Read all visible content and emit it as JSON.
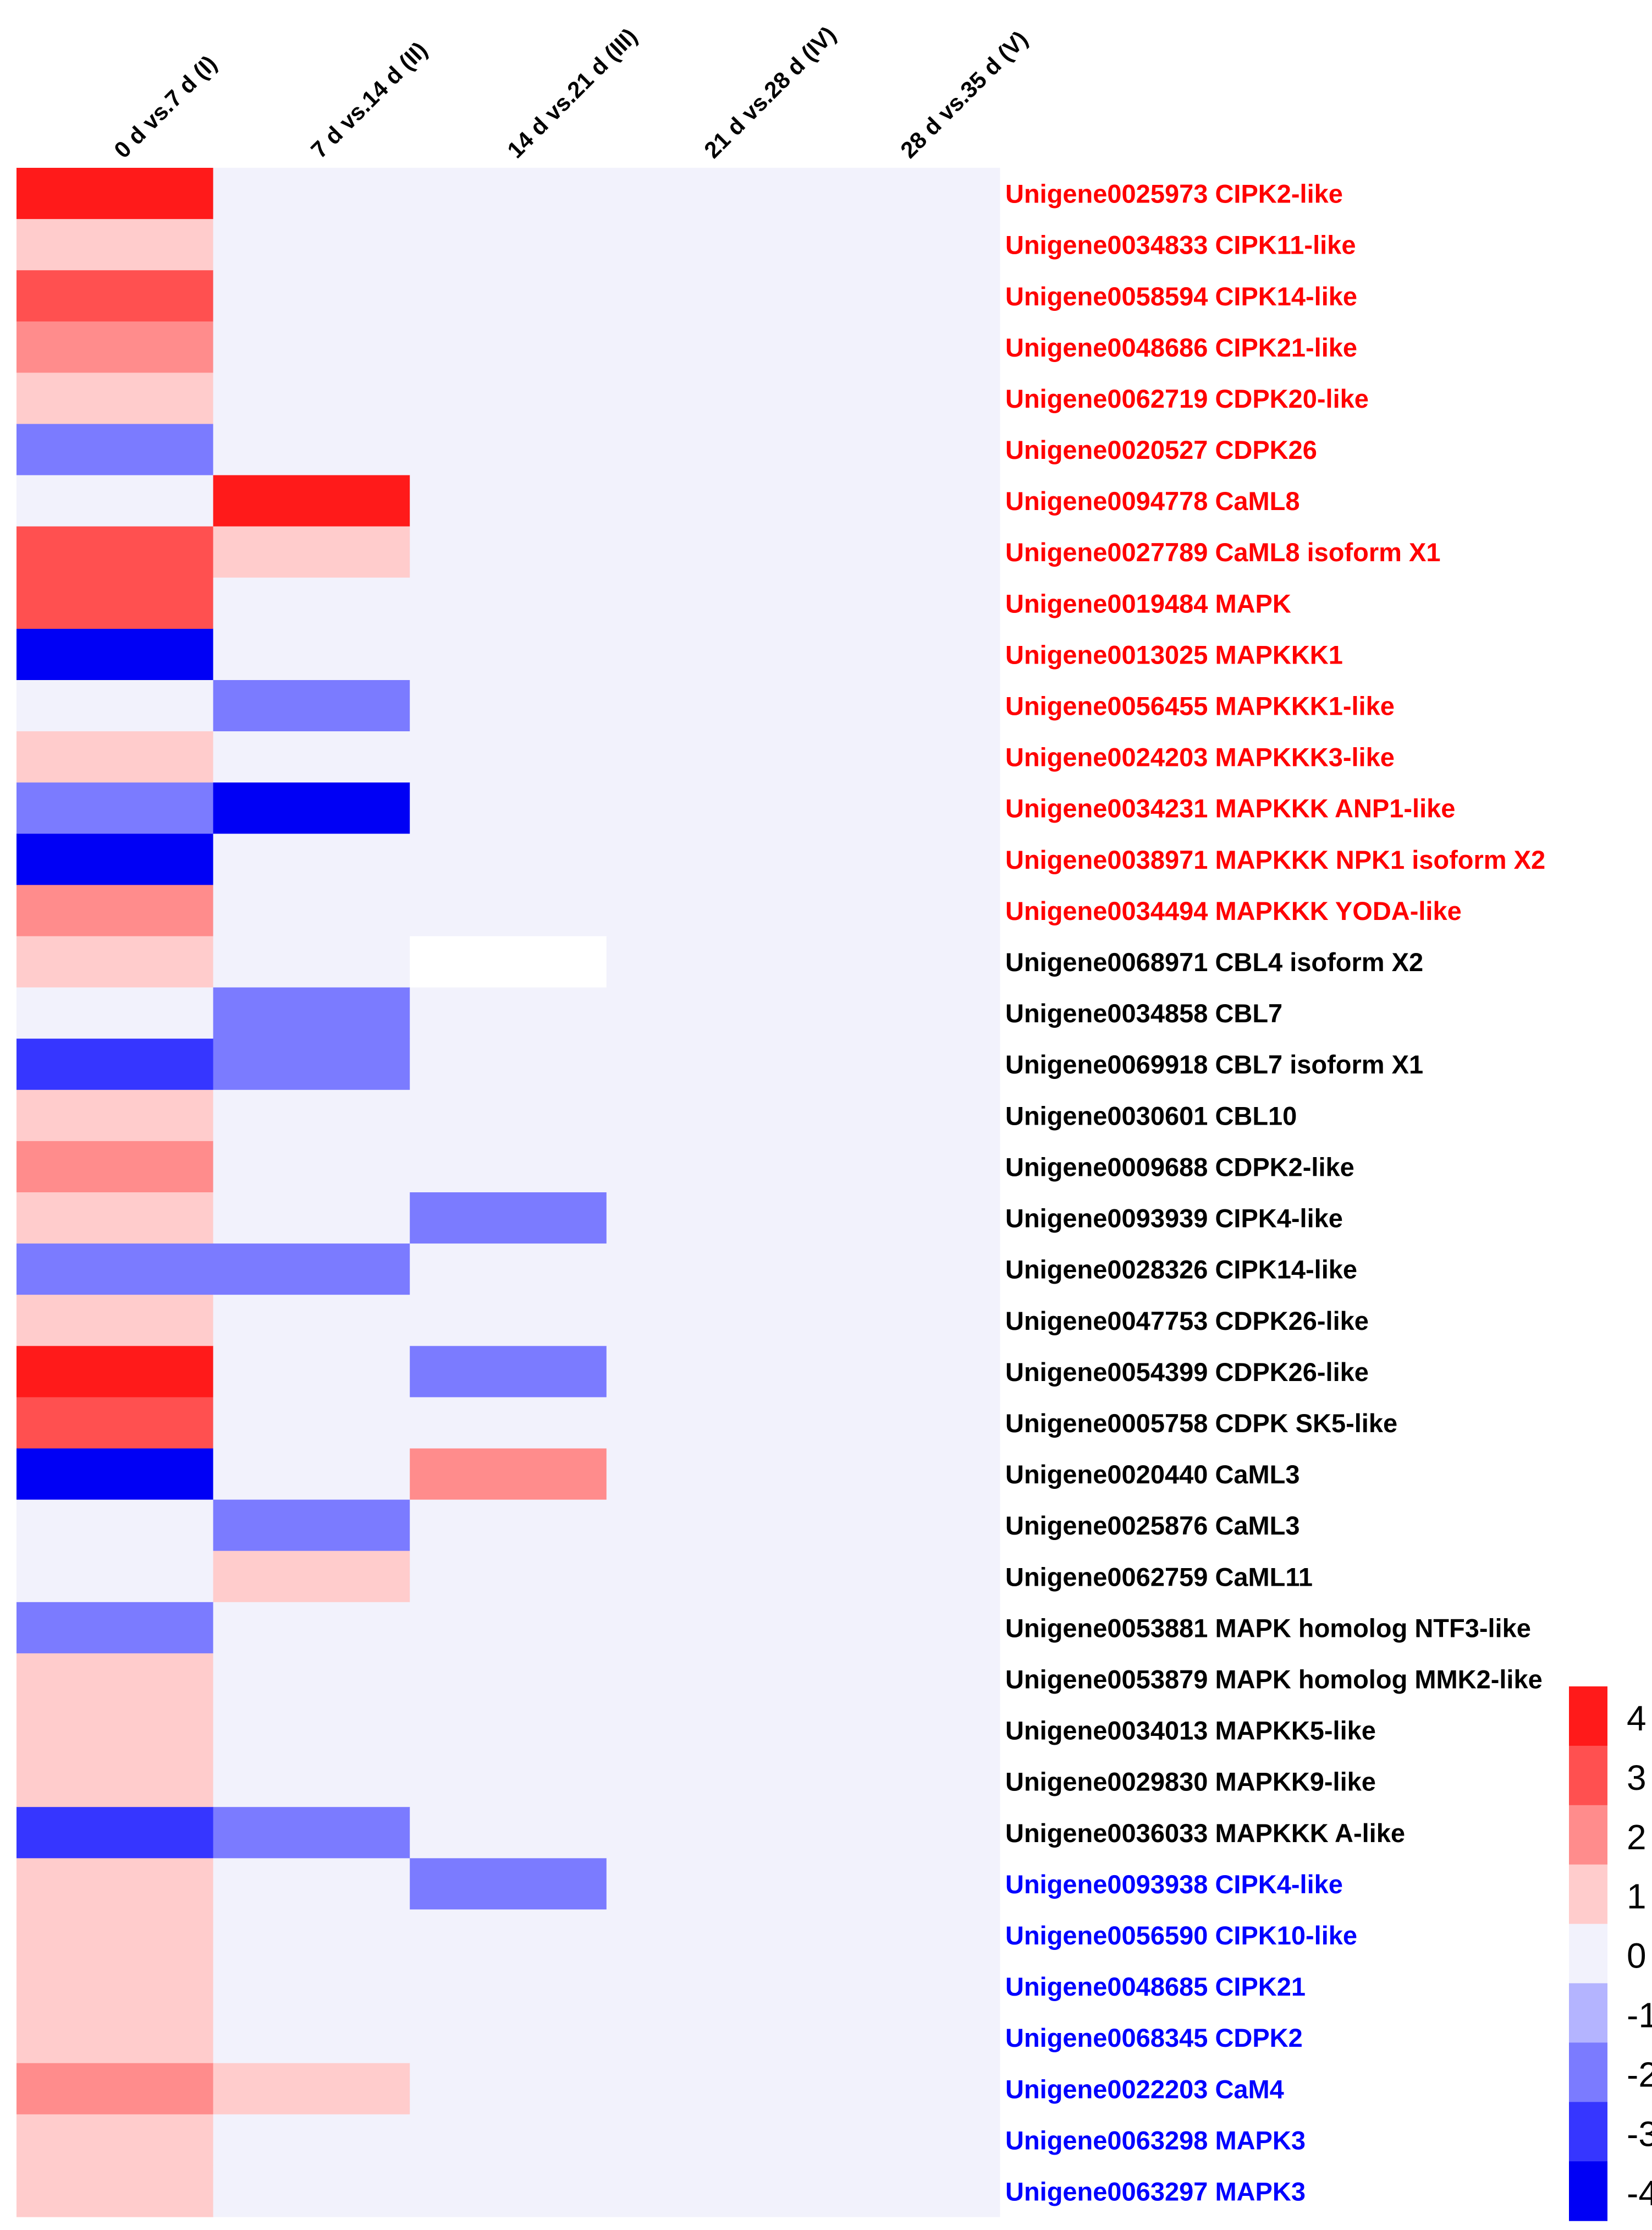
{
  "chart_data": {
    "type": "heatmap",
    "columns": [
      "0 d vs.7 d (I)",
      "7 d vs.14 d (II)",
      "14 d vs.21 d (III)",
      "21 d vs.28 d (IV)",
      "28 d vs.35 d (V)"
    ],
    "rows": [
      {
        "label": "Unigene0025973 CIPK2-like",
        "group": "red",
        "values": [
          4,
          0,
          0,
          0,
          0
        ]
      },
      {
        "label": "Unigene0034833 CIPK11-like",
        "group": "red",
        "values": [
          1,
          0,
          0,
          0,
          0
        ]
      },
      {
        "label": "Unigene0058594 CIPK14-like",
        "group": "red",
        "values": [
          3,
          0,
          0,
          0,
          0
        ]
      },
      {
        "label": "Unigene0048686 CIPK21-like",
        "group": "red",
        "values": [
          2,
          0,
          0,
          0,
          0
        ]
      },
      {
        "label": "Unigene0062719 CDPK20-like",
        "group": "red",
        "values": [
          1,
          0,
          0,
          0,
          0
        ]
      },
      {
        "label": "Unigene0020527 CDPK26",
        "group": "red",
        "values": [
          -2,
          0,
          0,
          0,
          0
        ]
      },
      {
        "label": "Unigene0094778 CaML8",
        "group": "red",
        "values": [
          0,
          4,
          0,
          0,
          0
        ]
      },
      {
        "label": "Unigene0027789 CaML8 isoform X1",
        "group": "red",
        "values": [
          3,
          1,
          0,
          0,
          0
        ]
      },
      {
        "label": "Unigene0019484 MAPK",
        "group": "red",
        "values": [
          3,
          0,
          0,
          0,
          0
        ]
      },
      {
        "label": "Unigene0013025 MAPKKK1",
        "group": "red",
        "values": [
          -4,
          0,
          0,
          0,
          0
        ]
      },
      {
        "label": "Unigene0056455 MAPKKK1-like",
        "group": "red",
        "values": [
          0,
          -2,
          0,
          0,
          0
        ]
      },
      {
        "label": "Unigene0024203 MAPKKK3-like",
        "group": "red",
        "values": [
          1,
          0,
          0,
          0,
          0
        ]
      },
      {
        "label": "Unigene0034231 MAPKKK ANP1-like",
        "group": "red",
        "values": [
          -2,
          -4,
          0,
          0,
          0
        ]
      },
      {
        "label": "Unigene0038971 MAPKKK NPK1 isoform X2",
        "group": "red",
        "values": [
          -4,
          0,
          0,
          0,
          0
        ]
      },
      {
        "label": "Unigene0034494 MAPKKK YODA-like",
        "group": "red",
        "values": [
          2,
          0,
          0,
          0,
          0
        ]
      },
      {
        "label": "Unigene0068971 CBL4 isoform X2",
        "group": "black",
        "values": [
          1,
          0,
          null,
          0,
          0
        ]
      },
      {
        "label": "Unigene0034858 CBL7",
        "group": "black",
        "values": [
          0,
          -2,
          0,
          0,
          0
        ]
      },
      {
        "label": "Unigene0069918 CBL7 isoform X1",
        "group": "black",
        "values": [
          -3,
          -2,
          0,
          0,
          0
        ]
      },
      {
        "label": "Unigene0030601 CBL10",
        "group": "black",
        "values": [
          1,
          0,
          0,
          0,
          0
        ]
      },
      {
        "label": "Unigene0009688 CDPK2-like",
        "group": "black",
        "values": [
          2,
          0,
          0,
          0,
          0
        ]
      },
      {
        "label": "Unigene0093939 CIPK4-like",
        "group": "black",
        "values": [
          1,
          0,
          -2,
          0,
          0
        ]
      },
      {
        "label": "Unigene0028326 CIPK14-like",
        "group": "black",
        "values": [
          -2,
          -2,
          0,
          0,
          0
        ]
      },
      {
        "label": "Unigene0047753 CDPK26-like",
        "group": "black",
        "values": [
          1,
          0,
          0,
          0,
          0
        ]
      },
      {
        "label": "Unigene0054399 CDPK26-like",
        "group": "black",
        "values": [
          4,
          0,
          -2,
          0,
          0
        ]
      },
      {
        "label": "Unigene0005758 CDPK SK5-like",
        "group": "black",
        "values": [
          2.5,
          0,
          0,
          0,
          0
        ]
      },
      {
        "label": "Unigene0020440 CaML3",
        "group": "black",
        "values": [
          -4,
          0,
          2,
          0,
          0
        ]
      },
      {
        "label": "Unigene0025876 CaML3",
        "group": "black",
        "values": [
          0,
          -2,
          0,
          0,
          0
        ]
      },
      {
        "label": "Unigene0062759 CaML11",
        "group": "black",
        "values": [
          0,
          1,
          0,
          0,
          0
        ]
      },
      {
        "label": "Unigene0053881 MAPK homolog NTF3-like",
        "group": "black",
        "values": [
          -2,
          0,
          0,
          0,
          0
        ]
      },
      {
        "label": "Unigene0053879 MAPK homolog MMK2-like",
        "group": "black",
        "values": [
          1,
          0,
          0,
          0,
          0
        ]
      },
      {
        "label": "Unigene0034013 MAPKK5-like",
        "group": "black",
        "values": [
          1,
          0,
          0,
          0,
          0
        ]
      },
      {
        "label": "Unigene0029830 MAPKK9-like",
        "group": "black",
        "values": [
          1,
          0,
          0,
          0,
          0
        ]
      },
      {
        "label": "Unigene0036033 MAPKKK A-like",
        "group": "black",
        "values": [
          -3,
          -2,
          0,
          0,
          0
        ]
      },
      {
        "label": "Unigene0093938 CIPK4-like",
        "group": "blue",
        "values": [
          1,
          0,
          -2,
          0,
          0
        ]
      },
      {
        "label": "Unigene0056590 CIPK10-like",
        "group": "blue",
        "values": [
          1,
          0,
          0,
          0,
          0
        ]
      },
      {
        "label": "Unigene0048685 CIPK21",
        "group": "blue",
        "values": [
          1,
          0,
          0,
          0,
          0
        ]
      },
      {
        "label": "Unigene0068345 CDPK2",
        "group": "blue",
        "values": [
          1,
          0,
          0,
          0,
          0
        ]
      },
      {
        "label": "Unigene0022203 CaM4",
        "group": "blue",
        "values": [
          2,
          1,
          0,
          0,
          0
        ]
      },
      {
        "label": "Unigene0063298 MAPK3",
        "group": "blue",
        "values": [
          1,
          0,
          0,
          0,
          0
        ]
      },
      {
        "label": "Unigene0063297 MAPK3",
        "group": "blue",
        "values": [
          1,
          0,
          0,
          0,
          0
        ]
      }
    ],
    "legend": {
      "ticks": [
        "4",
        "3",
        "2",
        "1",
        "0",
        "-1",
        "-2",
        "-3",
        "-4"
      ],
      "position": "bottom-right",
      "range": [
        -4,
        4
      ]
    },
    "colors": {
      "4": "#ff1a1a",
      "3": "#ff5050",
      "2": "#ff8c8c",
      "1": "#ffcccc",
      "0": "#f2f2fc",
      "-1": "#b4b4ff",
      "-2": "#7b7bff",
      "-3": "#3636ff",
      "-4": "#0000f5",
      "missing": "#ffffff",
      "group_red": "#ff0000",
      "group_black": "#000000",
      "group_blue": "#0000ff"
    }
  }
}
